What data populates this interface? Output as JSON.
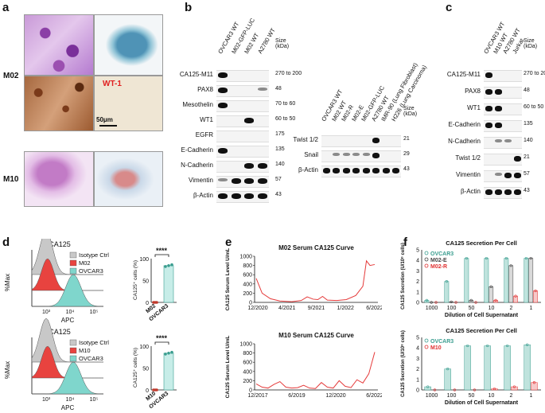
{
  "panels": {
    "a": "a",
    "b": "b",
    "c": "c",
    "d": "d",
    "e": "e",
    "f": "f"
  },
  "panel_a": {
    "row_m02": "M02",
    "row_m10": "M10",
    "wt1_label": "WT-1",
    "scale_bar": "50μm"
  },
  "panel_b": {
    "lanes": [
      "OVCAR3 WT",
      "M02-GFP-LUC",
      "M02 WT",
      "A2780 WT"
    ],
    "size_header": "Size (kDa)",
    "rows": [
      {
        "name": "CA125-M11",
        "size": "270 to 200"
      },
      {
        "name": "PAX8",
        "size": "48"
      },
      {
        "name": "Mesothelin",
        "size": "70 to 60"
      },
      {
        "name": "WT1",
        "size": "60 to 50"
      },
      {
        "name": "EGFR",
        "size": "175"
      },
      {
        "name": "E-Cadherin",
        "size": "135"
      },
      {
        "name": "N-Cadherin",
        "size": "140"
      },
      {
        "name": "Vimentin",
        "size": "57"
      },
      {
        "name": "β-Actin",
        "size": "43"
      }
    ]
  },
  "panel_b2": {
    "lanes": [
      "OVCAR3 WT",
      "M02 WT",
      "M02-R",
      "M02-E",
      "M02-GFP-LUC",
      "A2780 WT",
      "IMR-90 (Lung Fibroblast)",
      "H226 (Lung Carcinoma)"
    ],
    "size_header": "Size (kDa)",
    "rows": [
      {
        "name": "Twist 1/2",
        "size": "21"
      },
      {
        "name": "Snail",
        "size": "29"
      },
      {
        "name": "β-Actin",
        "size": "43"
      }
    ]
  },
  "panel_c": {
    "lanes": [
      "OVCAR3 WT",
      "M10 WT",
      "A2780 WT",
      "Jurkat"
    ],
    "size_header": "Size (kDa)",
    "rows": [
      {
        "name": "CA125-M11",
        "size": "270 to 200"
      },
      {
        "name": "PAX8",
        "size": "48"
      },
      {
        "name": "WT1",
        "size": "60 to 50"
      },
      {
        "name": "E-Cadherin",
        "size": "135"
      },
      {
        "name": "N-Cadherin",
        "size": "140"
      },
      {
        "name": "Twist 1/2",
        "size": "21"
      },
      {
        "name": "Vimentin",
        "size": "57"
      },
      {
        "name": "β-Actin",
        "size": "43"
      }
    ]
  },
  "panel_d": {
    "top": {
      "title": "CA125",
      "ylabel": "%Max",
      "xlabel": "APC",
      "legend": [
        "Isotype Ctrl",
        "M02",
        "OVCAR3"
      ],
      "ticks": [
        "10³",
        "10⁴",
        "10⁵"
      ],
      "sig": "****",
      "bar_ylabel": "CA125⁺ cells (%)",
      "bar_cats": [
        "M02",
        "OVCAR3"
      ]
    },
    "bottom": {
      "title": "CA125",
      "ylabel": "%Max",
      "xlabel": "APC",
      "legend": [
        "Isotype Ctrl",
        "M10",
        "OVCAR3"
      ],
      "ticks": [
        "10³",
        "10⁴",
        "10⁵"
      ],
      "sig": "****",
      "bar_ylabel": "CA125⁺ cells (%)",
      "bar_cats": [
        "M10",
        "OVCAR3"
      ]
    },
    "bar_yticks": [
      "0",
      "50",
      "100"
    ]
  },
  "chart_data": [
    {
      "type": "line",
      "title": "M02 Serum CA125 Curve",
      "ylabel": "CA125 Serum Level U/mL",
      "xlabel": "",
      "ylim": [
        0,
        1000
      ],
      "yticks": [
        "0",
        "200",
        "400",
        "600",
        "800",
        "1000"
      ],
      "xticks": [
        "12/2020",
        "4/2021",
        "9/2021",
        "1/2022",
        "6/2022"
      ],
      "x": [
        0,
        0.05,
        0.12,
        0.2,
        0.3,
        0.38,
        0.43,
        0.48,
        0.52,
        0.56,
        0.6,
        0.68,
        0.76,
        0.84,
        0.9,
        0.93,
        0.96,
        1.0
      ],
      "values": [
        520,
        200,
        80,
        30,
        15,
        40,
        120,
        70,
        60,
        130,
        50,
        40,
        60,
        150,
        350,
        900,
        800,
        820
      ]
    },
    {
      "type": "line",
      "title": "M10 Serum CA125 Curve",
      "ylabel": "CA125 Serum Level U/mL",
      "xlabel": "",
      "ylim": [
        0,
        1000
      ],
      "yticks": [
        "0",
        "200",
        "400",
        "600",
        "800",
        "1000"
      ],
      "xticks": [
        "12/2017",
        "6/2019",
        "12/2020",
        "6/2022"
      ],
      "x": [
        0,
        0.05,
        0.1,
        0.15,
        0.2,
        0.25,
        0.3,
        0.35,
        0.4,
        0.45,
        0.5,
        0.55,
        0.6,
        0.65,
        0.7,
        0.75,
        0.8,
        0.85,
        0.9,
        0.95,
        1.0
      ],
      "values": [
        130,
        60,
        40,
        120,
        180,
        60,
        40,
        50,
        100,
        40,
        30,
        160,
        60,
        40,
        200,
        80,
        50,
        220,
        150,
        350,
        820
      ]
    },
    {
      "type": "bar",
      "title": "CA125 Secretion Per Cell",
      "ylabel": "CA125 Secretion (U/10⁶ cells)",
      "xlabel": "Dilution of Cell Supernatant",
      "categories": [
        "1000",
        "100",
        "50",
        "10",
        "2",
        "1"
      ],
      "ylim": [
        0,
        5
      ],
      "yticks": [
        "0",
        "1",
        "2",
        "3",
        "4",
        "5"
      ],
      "series": [
        {
          "name": "OVCAR3",
          "color": "#3a9d8f",
          "values": [
            0.2,
            2.0,
            4.2,
            4.2,
            4.2,
            4.2
          ]
        },
        {
          "name": "M02-E",
          "color": "#444444",
          "values": [
            0.0,
            0.05,
            0.2,
            1.5,
            3.5,
            4.2
          ]
        },
        {
          "name": "M02-R",
          "color": "#e03030",
          "values": [
            0.0,
            0.0,
            0.0,
            0.2,
            0.6,
            1.1
          ]
        }
      ]
    },
    {
      "type": "bar",
      "title": "CA125 Secretion Per Cell",
      "ylabel": "CA125 Secretion (U/10⁶ cells)",
      "xlabel": "Dilution of Cell Supernatant",
      "categories": [
        "1000",
        "100",
        "50",
        "10",
        "2",
        "1"
      ],
      "ylim": [
        0,
        5
      ],
      "yticks": [
        "0",
        "1",
        "2",
        "3",
        "4",
        "5"
      ],
      "series": [
        {
          "name": "OVCAR3",
          "color": "#3a9d8f",
          "values": [
            0.3,
            2.0,
            4.2,
            4.2,
            4.2,
            4.3
          ]
        },
        {
          "name": "M10",
          "color": "#e03030",
          "values": [
            0.0,
            0.0,
            0.0,
            0.1,
            0.3,
            0.7
          ]
        }
      ]
    }
  ]
}
